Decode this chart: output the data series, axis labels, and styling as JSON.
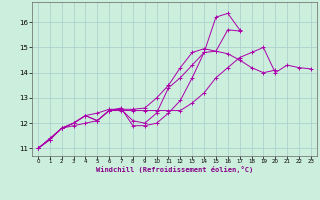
{
  "xlabel": "Windchill (Refroidissement éolien,°C)",
  "bg_color": "#cceedd",
  "grid_color": "#aacccc",
  "line_color": "#aa00aa",
  "xlim": [
    -0.5,
    23.5
  ],
  "ylim": [
    10.7,
    16.8
  ],
  "yticks": [
    11,
    12,
    13,
    14,
    15,
    16
  ],
  "xticks": [
    0,
    1,
    2,
    3,
    4,
    5,
    6,
    7,
    8,
    9,
    10,
    11,
    12,
    13,
    14,
    15,
    16,
    17,
    18,
    19,
    20,
    21,
    22,
    23
  ],
  "series": [
    {
      "x": [
        0,
        1,
        2,
        3,
        4,
        5,
        6,
        7,
        8,
        9,
        10,
        11,
        12,
        13,
        14,
        15,
        16,
        17
      ],
      "y": [
        11.0,
        11.4,
        11.8,
        11.9,
        12.0,
        12.1,
        12.5,
        12.6,
        11.9,
        11.9,
        12.0,
        12.4,
        12.9,
        13.8,
        14.8,
        16.2,
        16.35,
        15.7
      ]
    },
    {
      "x": [
        0,
        1,
        2,
        3,
        4,
        5,
        6,
        7,
        8,
        9,
        10,
        11,
        12,
        13,
        14,
        15,
        16,
        17,
        18,
        19,
        20,
        21,
        22,
        23
      ],
      "y": [
        11.0,
        11.35,
        11.8,
        12.0,
        12.3,
        12.1,
        12.5,
        12.5,
        12.5,
        12.5,
        12.5,
        12.5,
        12.5,
        12.8,
        13.2,
        13.8,
        14.2,
        14.6,
        14.8,
        15.0,
        14.0,
        14.3,
        14.2,
        14.15
      ]
    },
    {
      "x": [
        0,
        1,
        2,
        3,
        4,
        5,
        6,
        7,
        8,
        9,
        10,
        11,
        12,
        13,
        14,
        15,
        16,
        17,
        18,
        19,
        20
      ],
      "y": [
        11.0,
        11.35,
        11.8,
        12.0,
        12.3,
        12.4,
        12.55,
        12.55,
        12.55,
        12.6,
        13.0,
        13.5,
        14.2,
        14.8,
        14.95,
        14.85,
        14.75,
        14.5,
        14.2,
        14.0,
        14.1
      ]
    },
    {
      "x": [
        0,
        1,
        2,
        3,
        4,
        5,
        6,
        7,
        8,
        9,
        10,
        11,
        12,
        13,
        14,
        15,
        16,
        17
      ],
      "y": [
        11.0,
        11.35,
        11.8,
        12.0,
        12.3,
        12.1,
        12.5,
        12.55,
        12.1,
        12.0,
        12.4,
        13.4,
        13.8,
        14.3,
        14.8,
        14.85,
        15.7,
        15.65
      ]
    }
  ]
}
